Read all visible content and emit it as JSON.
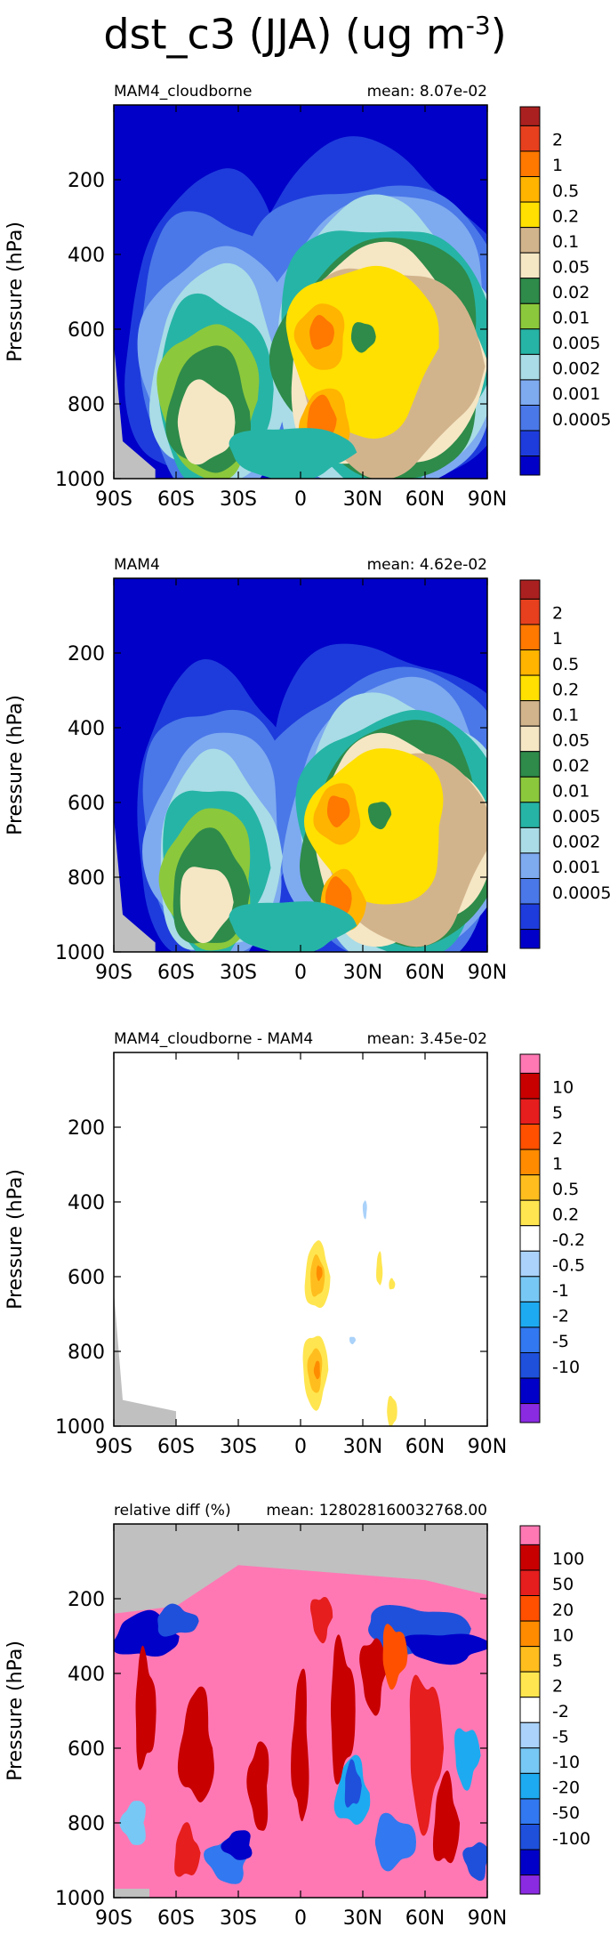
{
  "figure": {
    "title_main": "dst_c3 (JJA) (ug m",
    "title_exp": "-3",
    "title_close": ")"
  },
  "chart_data": [
    {
      "type": "heatmap",
      "panel_label": "MAM4_cloudborne",
      "mean_text": "mean: 8.07e-02",
      "ylabel": "Pressure (hPa)",
      "x_ticks": [
        "90S",
        "60S",
        "30S",
        "0",
        "30N",
        "60N",
        "90N"
      ],
      "y_ticks": [
        "200",
        "400",
        "600",
        "800",
        "1000"
      ],
      "xlim": [
        -90,
        90
      ],
      "ylim": [
        1000,
        0
      ],
      "colorbar_labels": [
        "2",
        "1",
        "0.5",
        "0.2",
        "0.1",
        "0.05",
        "0.02",
        "0.01",
        "0.005",
        "0.002",
        "0.001",
        "0.0005"
      ],
      "colors": [
        "#0000c8",
        "#1e3cdc",
        "#4a78e8",
        "#7eaaf0",
        "#a9dce6",
        "#26b4a6",
        "#8cc83c",
        "#2e8b4a",
        "#f5e6c4",
        "#d2b48c",
        "#ffe000",
        "#ffb400",
        "#ff7800",
        "#e6401e",
        "#aa2020"
      ],
      "nonzero_lat_range": [
        -80,
        90
      ],
      "peak_regions": [
        {
          "lat": 10,
          "pressure": 850,
          "level": 12
        },
        {
          "lat": 10,
          "pressure": 600,
          "level": 11
        },
        {
          "lat": 30,
          "pressure": 600,
          "level": 10
        },
        {
          "lat": -45,
          "pressure": 850,
          "level": 8
        }
      ],
      "missing_region": "surface near 90S-70S (gray)"
    },
    {
      "type": "heatmap",
      "panel_label": "MAM4",
      "mean_text": "mean: 4.62e-02",
      "ylabel": "Pressure (hPa)",
      "x_ticks": [
        "90S",
        "60S",
        "30S",
        "0",
        "30N",
        "60N",
        "90N"
      ],
      "y_ticks": [
        "200",
        "400",
        "600",
        "800",
        "1000"
      ],
      "xlim": [
        -90,
        90
      ],
      "ylim": [
        1000,
        0
      ],
      "colorbar_labels": [
        "2",
        "1",
        "0.5",
        "0.2",
        "0.1",
        "0.05",
        "0.02",
        "0.01",
        "0.005",
        "0.002",
        "0.001",
        "0.0005"
      ],
      "colors": [
        "#0000c8",
        "#1e3cdc",
        "#4a78e8",
        "#7eaaf0",
        "#a9dce6",
        "#26b4a6",
        "#8cc83c",
        "#2e8b4a",
        "#f5e6c4",
        "#d2b48c",
        "#ffe000",
        "#ffb400",
        "#ff7800",
        "#e6401e",
        "#aa2020"
      ],
      "nonzero_lat_range": [
        -70,
        90
      ],
      "peak_regions": [
        {
          "lat": 15,
          "pressure": 850,
          "level": 12
        },
        {
          "lat": 15,
          "pressure": 600,
          "level": 11
        },
        {
          "lat": 35,
          "pressure": 550,
          "level": 10
        }
      ],
      "missing_region": "surface near 90S-70S (gray)"
    },
    {
      "type": "heatmap",
      "panel_label": "MAM4_cloudborne - MAM4",
      "mean_text": "mean: 3.45e-02",
      "ylabel": "Pressure (hPa)",
      "x_ticks": [
        "90S",
        "60S",
        "30S",
        "0",
        "30N",
        "60N",
        "90N"
      ],
      "y_ticks": [
        "200",
        "400",
        "600",
        "800",
        "1000"
      ],
      "xlim": [
        -90,
        90
      ],
      "ylim": [
        1000,
        0
      ],
      "colorbar_labels": [
        "10",
        "5",
        "2",
        "1",
        "0.5",
        "0.2",
        "-0.2",
        "-0.5",
        "-1",
        "-2",
        "-5",
        "-10"
      ],
      "colors": [
        "#8a2be2",
        "#0000c8",
        "#1e50dc",
        "#3278f0",
        "#1eaaf0",
        "#78c8f5",
        "#aad2fa",
        "#ffffff",
        "#ffe650",
        "#ffbe1e",
        "#ff8c00",
        "#ff5000",
        "#e61e1e",
        "#c80000",
        "#ff78b4"
      ],
      "positive_regions": [
        {
          "lat": 8,
          "pressure": 600
        },
        {
          "lat": 8,
          "pressure": 850
        },
        {
          "lat": 38,
          "pressure": 580
        },
        {
          "lat": 45,
          "pressure": 950
        }
      ],
      "missing_region": "surface near 90S-60S (gray)"
    },
    {
      "type": "heatmap",
      "panel_label": "relative diff (%)",
      "mean_text": "mean: 128028160032768.00",
      "ylabel": "Pressure (hPa)",
      "x_ticks": [
        "90S",
        "60S",
        "30S",
        "0",
        "30N",
        "60N",
        "90N"
      ],
      "y_ticks": [
        "200",
        "400",
        "600",
        "800",
        "1000"
      ],
      "xlim": [
        -90,
        90
      ],
      "ylim": [
        1000,
        0
      ],
      "colorbar_labels": [
        "100",
        "50",
        "20",
        "10",
        "5",
        "2",
        "-2",
        "-5",
        "-10",
        "-20",
        "-50",
        "-100"
      ],
      "colors": [
        "#8a2be2",
        "#0000c8",
        "#1e50dc",
        "#3278f0",
        "#1eaaf0",
        "#78c8f5",
        "#aad2fa",
        "#ffffff",
        "#ffe650",
        "#ffbe1e",
        "#ff8c00",
        "#ff5000",
        "#e61e1e",
        "#c80000",
        "#ff78b4"
      ],
      "dominant_value": ">100",
      "missing_region": "upper levels above ~150-300 hPa (gray)"
    }
  ]
}
